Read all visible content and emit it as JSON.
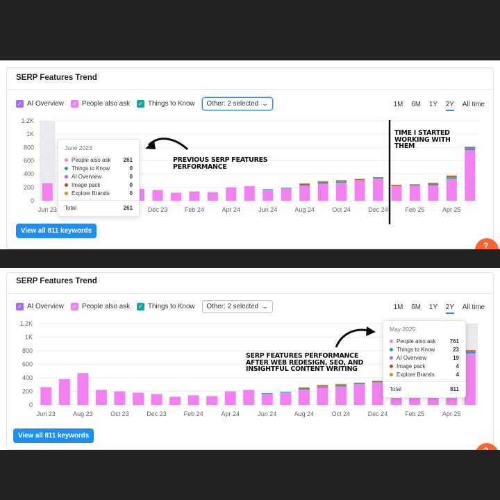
{
  "panels": [
    {
      "title": "SERP Features Trend",
      "toggles": [
        {
          "label": "AI Overview",
          "color": "#a36bff"
        },
        {
          "label": "People also ask",
          "color": "#f280f0"
        },
        {
          "label": "Things to Know",
          "color": "#13a89e"
        }
      ],
      "other_select": "Other: 2 selected",
      "ranges": [
        "1M",
        "6M",
        "1Y",
        "2Y",
        "All time"
      ],
      "active_range": "2Y",
      "button": "View all 811 keywords",
      "tooltip": {
        "header": "June 2023",
        "rows": [
          {
            "label": "People also ask",
            "value": "261",
            "color": "#f27ff0"
          },
          {
            "label": "Things to Know",
            "value": "0",
            "color": "#13a89e"
          },
          {
            "label": "AI Overview",
            "value": "0",
            "color": "#a36bff"
          },
          {
            "label": "Image pack",
            "value": "0",
            "color": "#a0521a"
          },
          {
            "label": "Explore Brands",
            "value": "0",
            "color": "#e08a1e"
          }
        ],
        "total_label": "Total",
        "total_value": "261"
      },
      "annotations": {
        "previous": "PREVIOUS SERP FEATURES PERFORMANCE",
        "started": "TIME I STARTED WORKING WITH THEM"
      }
    },
    {
      "title": "SERP Features Trend",
      "toggles": [
        {
          "label": "AI Overview",
          "color": "#a36bff"
        },
        {
          "label": "People also ask",
          "color": "#f280f0"
        },
        {
          "label": "Things to Know",
          "color": "#13a89e"
        }
      ],
      "other_select": "Other: 2 selected",
      "ranges": [
        "1M",
        "6M",
        "1Y",
        "2Y",
        "All time"
      ],
      "active_range": "2Y",
      "button": "View all 811 keywords",
      "tooltip": {
        "header": "May 2025",
        "rows": [
          {
            "label": "People also ask",
            "value": "761",
            "color": "#f27ff0"
          },
          {
            "label": "Things to Know",
            "value": "23",
            "color": "#13a89e"
          },
          {
            "label": "AI Overview",
            "value": "19",
            "color": "#a36bff"
          },
          {
            "label": "Image pack",
            "value": "4",
            "color": "#a0521a"
          },
          {
            "label": "Explore Brands",
            "value": "4",
            "color": "#e08a1e"
          }
        ],
        "total_label": "Total",
        "total_value": "811"
      },
      "annotations": {
        "after": "SERP FEATURES PERFORMANCE AFTER WEB REDESIGN, SEO, AND INSIGHTFUL CONTENT WRITING"
      }
    }
  ],
  "chart_data": {
    "type": "bar",
    "categories": [
      "Jun 23",
      "Jul 23",
      "Aug 23",
      "Sep 23",
      "Oct 23",
      "Nov 23",
      "Dec 23",
      "Jan 24",
      "Feb 24",
      "Mar 24",
      "Apr 24",
      "May 24",
      "Jun 24",
      "Jul 24",
      "Aug 24",
      "Sep 24",
      "Oct 24",
      "Nov 24",
      "Dec 24",
      "Jan 25",
      "Feb 25",
      "Mar 25",
      "Apr 25",
      "May 25"
    ],
    "x_tick_labels": [
      "Jun 23",
      "Aug 23",
      "Oct 23",
      "Dec 23",
      "Feb 24",
      "Apr 24",
      "Jun 24",
      "Aug 24",
      "Oct 24",
      "Dec 24",
      "Feb 25",
      "Apr 25"
    ],
    "y_ticks": [
      "0",
      "200",
      "400",
      "600",
      "800",
      "1K",
      "1.2K"
    ],
    "ylim": [
      0,
      1200
    ],
    "series": [
      {
        "name": "People also ask",
        "color": "#f280f0",
        "values": [
          261,
          380,
          470,
          220,
          200,
          180,
          160,
          120,
          140,
          130,
          200,
          220,
          170,
          185,
          225,
          255,
          270,
          310,
          335,
          220,
          230,
          230,
          330,
          761
        ]
      },
      {
        "name": "Things to Know",
        "color": "#13a89e",
        "values": [
          0,
          0,
          0,
          0,
          0,
          0,
          0,
          0,
          0,
          0,
          0,
          0,
          5,
          8,
          10,
          12,
          12,
          8,
          10,
          8,
          8,
          8,
          15,
          23
        ]
      },
      {
        "name": "AI Overview",
        "color": "#a36bff",
        "values": [
          0,
          0,
          0,
          0,
          0,
          0,
          0,
          0,
          0,
          0,
          0,
          0,
          0,
          0,
          5,
          8,
          8,
          0,
          0,
          0,
          0,
          5,
          10,
          19
        ]
      },
      {
        "name": "Image pack",
        "color": "#a0521a",
        "values": [
          0,
          0,
          0,
          0,
          0,
          0,
          0,
          0,
          0,
          0,
          0,
          0,
          0,
          0,
          10,
          10,
          10,
          5,
          5,
          5,
          5,
          15,
          10,
          4
        ]
      },
      {
        "name": "Explore Brands",
        "color": "#e08a1e",
        "values": [
          0,
          0,
          0,
          0,
          0,
          0,
          0,
          0,
          0,
          0,
          0,
          0,
          0,
          0,
          10,
          10,
          10,
          5,
          5,
          5,
          5,
          12,
          15,
          4
        ]
      }
    ],
    "grid": true,
    "legend": "top-left"
  }
}
